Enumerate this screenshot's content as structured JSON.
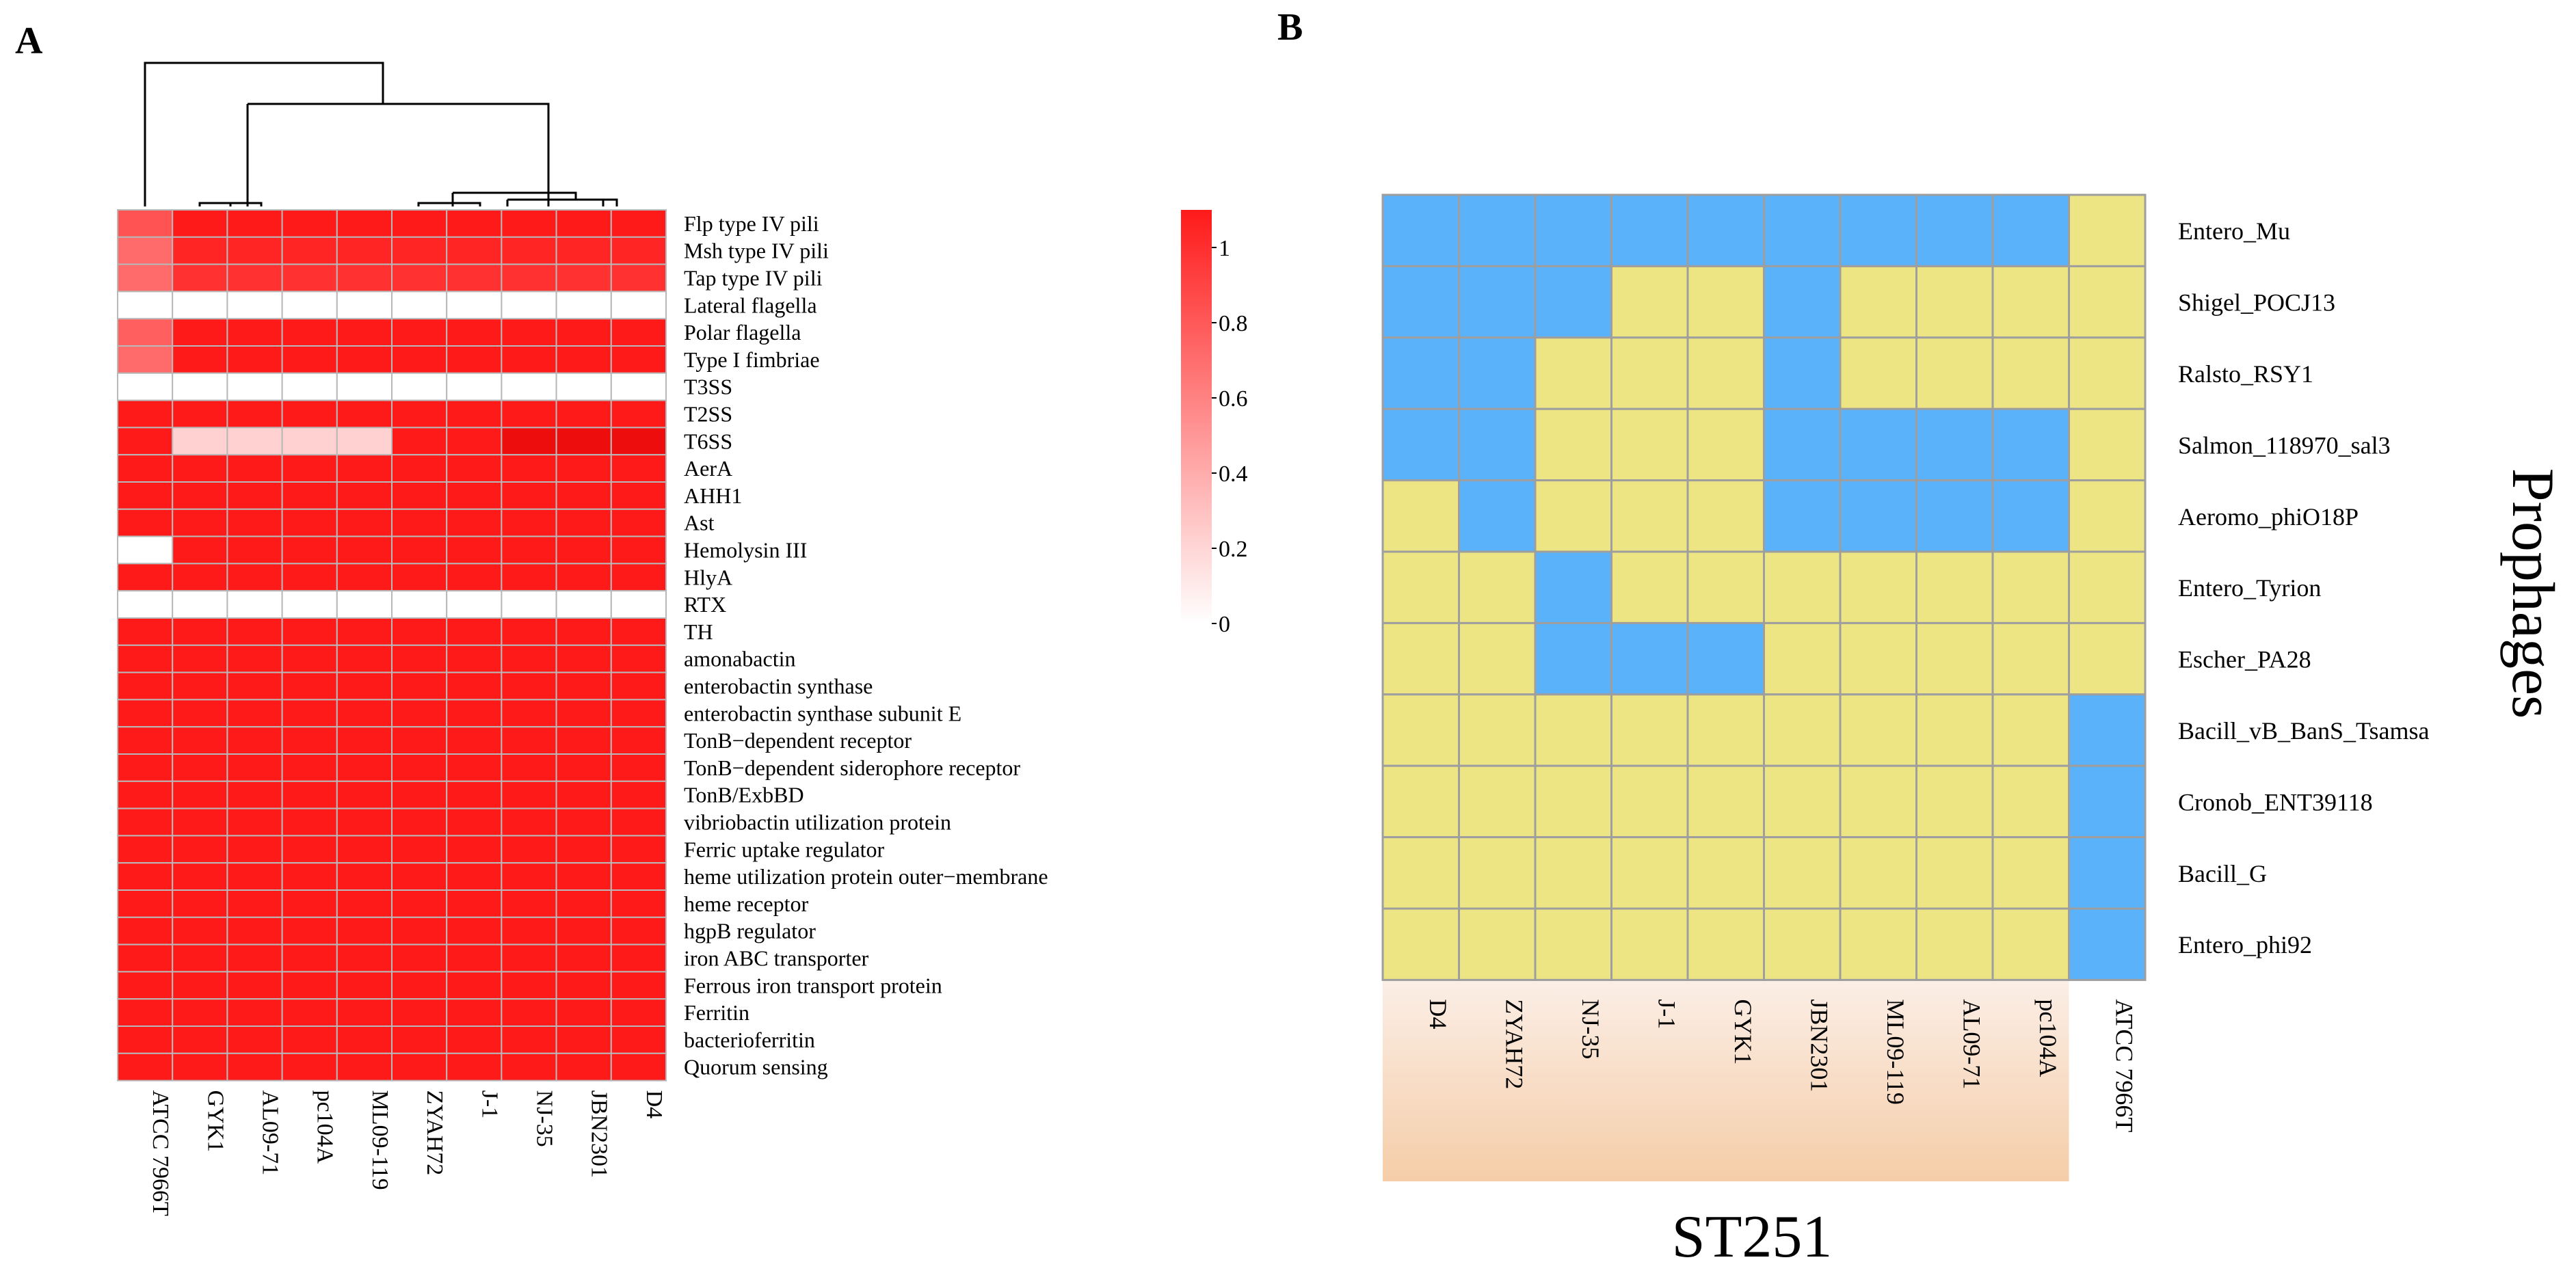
{
  "panel_labels": {
    "a": "A",
    "b": "B"
  },
  "colors": {
    "heat_high": "#ff1a1a",
    "heat_low": "#ffffff",
    "cell_border": "#b8b8b8",
    "prophage_present": "#5ab2fb",
    "prophage_absent": "#ede583",
    "prophage_grid": "#9e9e9e",
    "st_gradient_top": "#fbeee6",
    "st_gradient_bottom": "#f5cda8"
  },
  "chart_data": [
    {
      "type": "heatmap",
      "panel": "A",
      "columns": [
        "ATCC 7966T",
        "GYK1",
        "AL09-71",
        "pc104A",
        "ML09-119",
        "ZYAH72",
        "J-1",
        "NJ-35",
        "JBN2301",
        "D4"
      ],
      "rows": [
        "Flp type IV pili",
        "Msh type IV pili",
        "Tap type IV pili",
        "Lateral flagella",
        "Polar flagella",
        "Type I fimbriae",
        "T3SS",
        "T2SS",
        "T6SS",
        "AerA",
        "AHH1",
        "Ast",
        "Hemolysin III",
        "HlyA",
        "RTX",
        "TH",
        "amonabactin",
        "enterobactin synthase",
        "enterobactin synthase subunit E",
        "TonB−dependent receptor",
        "TonB−dependent siderophore receptor",
        "TonB/ExbBD",
        "vibriobactin utilization protein",
        "Ferric uptake regulator",
        "heme utilization protein outer−membrane",
        "heme receptor",
        "hgpB regulator",
        "iron ABC transporter",
        "Ferrous iron transport protein",
        "Ferritin",
        "bacterioferritin",
        "Quorum sensing"
      ],
      "values": [
        [
          0.75,
          1,
          1,
          1,
          1,
          1,
          1,
          1,
          1,
          1
        ],
        [
          0.65,
          0.95,
          0.95,
          0.95,
          0.95,
          0.95,
          0.95,
          0.95,
          0.95,
          0.95
        ],
        [
          0.65,
          0.9,
          0.9,
          0.9,
          0.9,
          0.9,
          0.9,
          0.9,
          0.9,
          0.9
        ],
        [
          0,
          0,
          0,
          0,
          0,
          0,
          0,
          0,
          0,
          0
        ],
        [
          0.7,
          1,
          1,
          1,
          1,
          1,
          1,
          1,
          1,
          1
        ],
        [
          0.65,
          1,
          1,
          1,
          1,
          1,
          1,
          1,
          1,
          1
        ],
        [
          0,
          0,
          0,
          0,
          0,
          0,
          0,
          0,
          0,
          0
        ],
        [
          1,
          1,
          1,
          1,
          1,
          1,
          1,
          1,
          1,
          1
        ],
        [
          1,
          0.2,
          0.2,
          0.2,
          0.2,
          1,
          1,
          1.1,
          1.1,
          1.1
        ],
        [
          1,
          1,
          1,
          1,
          1,
          1,
          1,
          1,
          1,
          1
        ],
        [
          1,
          1,
          1,
          1,
          1,
          1,
          1,
          1,
          1,
          1
        ],
        [
          1,
          1,
          1,
          1,
          1,
          1,
          1,
          1,
          1,
          1
        ],
        [
          0,
          1,
          1,
          1,
          1,
          1,
          1,
          1,
          1,
          1
        ],
        [
          1,
          1,
          1,
          1,
          1,
          1,
          1,
          1,
          1,
          1
        ],
        [
          0,
          0,
          0,
          0,
          0,
          0,
          0,
          0,
          0,
          0
        ],
        [
          1,
          1,
          1,
          1,
          1,
          1,
          1,
          1,
          1,
          1
        ],
        [
          1,
          1,
          1,
          1,
          1,
          1,
          1,
          1,
          1,
          1
        ],
        [
          1,
          1,
          1,
          1,
          1,
          1,
          1,
          1,
          1,
          1
        ],
        [
          1,
          1,
          1,
          1,
          1,
          1,
          1,
          1,
          1,
          1
        ],
        [
          1,
          1,
          1,
          1,
          1,
          1,
          1,
          1,
          1,
          1
        ],
        [
          1,
          1,
          1,
          1,
          1,
          1,
          1,
          1,
          1,
          1
        ],
        [
          1,
          1,
          1,
          1,
          1,
          1,
          1,
          1,
          1,
          1
        ],
        [
          1,
          1,
          1,
          1,
          1,
          1,
          1,
          1,
          1,
          1
        ],
        [
          1,
          1,
          1,
          1,
          1,
          1,
          1,
          1,
          1,
          1
        ],
        [
          1,
          1,
          1,
          1,
          1,
          1,
          1,
          1,
          1,
          1
        ],
        [
          1,
          1,
          1,
          1,
          1,
          1,
          1,
          1,
          1,
          1
        ],
        [
          1,
          1,
          1,
          1,
          1,
          1,
          1,
          1,
          1,
          1
        ],
        [
          1,
          1,
          1,
          1,
          1,
          1,
          1,
          1,
          1,
          1
        ],
        [
          1,
          1,
          1,
          1,
          1,
          1,
          1,
          1,
          1,
          1
        ],
        [
          1,
          1,
          1,
          1,
          1,
          1,
          1,
          1,
          1,
          1
        ],
        [
          1,
          1,
          1,
          1,
          1,
          1,
          1,
          1,
          1,
          1
        ],
        [
          1,
          1,
          1,
          1,
          1,
          1,
          1,
          1,
          1,
          1
        ]
      ],
      "colorbar": {
        "range": [
          0,
          1.1
        ],
        "ticks": [
          "0",
          "0.2",
          "0.4",
          "0.6",
          "0.8",
          "1"
        ],
        "tick_values": [
          0,
          0.2,
          0.4,
          0.6,
          0.8,
          1
        ]
      },
      "dendrogram": "column clustering: ATCC 7966T is the outgroup; {GYK1, AL09-71, pc104A, ML09-119} cluster together; {ZYAH72, J-1, NJ-35, JBN2301, D4} cluster together"
    },
    {
      "type": "heatmap",
      "panel": "B",
      "ylabel": "Prophages",
      "group_label": "ST251",
      "columns": [
        "D4",
        "ZYAH72",
        "NJ-35",
        "J-1",
        "GYK1",
        "JBN2301",
        "ML09-119",
        "AL09-71",
        "pc104A",
        "ATCC 7966T"
      ],
      "group_columns": 9,
      "rows": [
        "Entero_Mu",
        "Shigel_POCJ13",
        "Ralsto_RSY1",
        "Salmon_118970_sal3",
        "Aeromo_phiO18P",
        "Entero_Tyrion",
        "Escher_PA28",
        "Bacill_vB_BanS_Tsamsa",
        "Cronob_ENT39118",
        "Bacill_G",
        "Entero_phi92"
      ],
      "values": [
        [
          1,
          1,
          1,
          1,
          1,
          1,
          1,
          1,
          1,
          0
        ],
        [
          1,
          1,
          1,
          0,
          0,
          1,
          0,
          0,
          0,
          0
        ],
        [
          1,
          1,
          0,
          0,
          0,
          1,
          0,
          0,
          0,
          0
        ],
        [
          1,
          1,
          0,
          0,
          0,
          1,
          1,
          1,
          1,
          0
        ],
        [
          0,
          1,
          0,
          0,
          0,
          1,
          1,
          1,
          1,
          0
        ],
        [
          0,
          0,
          1,
          0,
          0,
          0,
          0,
          0,
          0,
          0
        ],
        [
          0,
          0,
          1,
          1,
          1,
          0,
          0,
          0,
          0,
          0
        ],
        [
          0,
          0,
          0,
          0,
          0,
          0,
          0,
          0,
          0,
          1
        ],
        [
          0,
          0,
          0,
          0,
          0,
          0,
          0,
          0,
          0,
          1
        ],
        [
          0,
          0,
          0,
          0,
          0,
          0,
          0,
          0,
          0,
          1
        ],
        [
          0,
          0,
          0,
          0,
          0,
          0,
          0,
          0,
          0,
          1
        ]
      ]
    }
  ]
}
